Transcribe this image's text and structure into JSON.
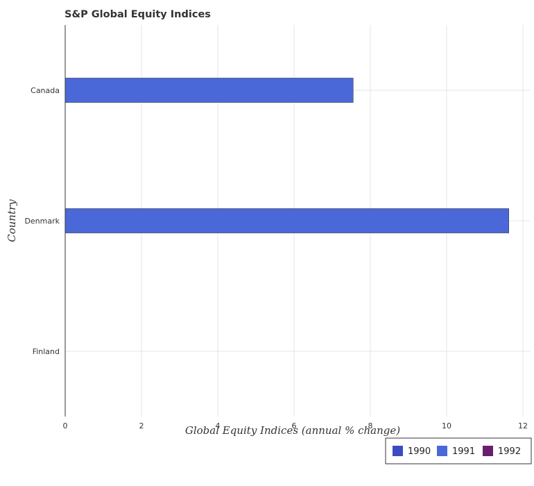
{
  "chart_data": {
    "type": "bar",
    "orientation": "horizontal",
    "title": "S&P Global Equity Indices",
    "xlabel": "Global Equity Indices (annual % change)",
    "ylabel": "Country",
    "categories": [
      "Canada",
      "Denmark",
      "Finland"
    ],
    "series": [
      {
        "name": "1990",
        "color": "#3b4cc0",
        "values": [
          null,
          null,
          null
        ]
      },
      {
        "name": "1991",
        "color": "#4a68d8",
        "values": [
          7.55,
          11.63,
          null
        ]
      },
      {
        "name": "1992",
        "color": "#6a1f6e",
        "values": [
          null,
          null,
          null
        ]
      }
    ],
    "xlim": [
      0,
      12.2
    ],
    "xticks": [
      "0",
      "2",
      "4",
      "6",
      "8",
      "10",
      "12"
    ],
    "grid": true,
    "legend_position": "bottom-right"
  }
}
